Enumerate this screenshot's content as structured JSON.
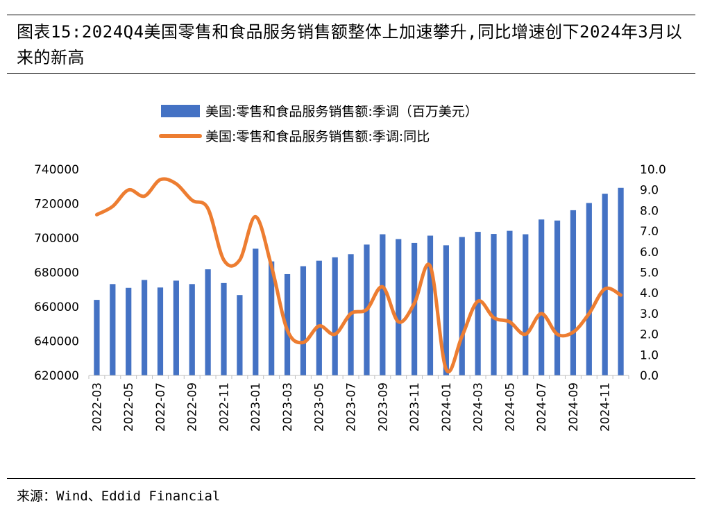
{
  "title": "图表15:2024Q4美国零售和食品服务销售额整体上加速攀升,同比增速创下2024年3月以来的新高",
  "source": "来源：Wind、Eddid Financial",
  "colors": {
    "bar": "#4472C4",
    "line": "#ED7D31",
    "axis": "#bfbfbf",
    "text": "#000000"
  },
  "chart_data": {
    "type": "bar",
    "title": "",
    "categories": [
      "2022-03",
      "2022-04",
      "2022-05",
      "2022-06",
      "2022-07",
      "2022-08",
      "2022-09",
      "2022-10",
      "2022-11",
      "2022-12",
      "2023-01",
      "2023-02",
      "2023-03",
      "2023-04",
      "2023-05",
      "2023-06",
      "2023-07",
      "2023-08",
      "2023-09",
      "2023-10",
      "2023-11",
      "2023-12",
      "2024-01",
      "2024-02",
      "2024-03",
      "2024-04",
      "2024-05",
      "2024-06",
      "2024-07",
      "2024-08",
      "2024-09",
      "2024-10",
      "2024-11",
      "2024-12"
    ],
    "x_tick_labels": [
      "2022-03",
      "2022-05",
      "2022-07",
      "2022-09",
      "2022-11",
      "2023-01",
      "2023-03",
      "2023-05",
      "2023-07",
      "2023-09",
      "2023-11",
      "2024-01",
      "2024-03",
      "2024-05",
      "2024-07",
      "2024-09",
      "2024-11"
    ],
    "series": [
      {
        "name": "美国:零售和食品服务销售额:季调（百万美元）",
        "type": "bar",
        "axis": "left",
        "values": [
          664000,
          673200,
          671000,
          675600,
          671200,
          675200,
          673200,
          681800,
          673800,
          666800,
          693800,
          686400,
          679000,
          683600,
          686800,
          688800,
          690600,
          696200,
          702200,
          699400,
          697200,
          701400,
          695800,
          700600,
          703600,
          702400,
          704200,
          702200,
          710800,
          710200,
          716200,
          720400,
          725800,
          729200
        ]
      },
      {
        "name": "美国:零售和食品服务销售额:季调:同比",
        "type": "line",
        "axis": "right",
        "values": [
          7.8,
          8.2,
          9.0,
          8.7,
          9.5,
          9.3,
          8.5,
          8.1,
          5.6,
          5.6,
          7.7,
          5.3,
          2.2,
          1.6,
          2.4,
          2.0,
          3.0,
          3.2,
          4.3,
          2.6,
          3.5,
          5.3,
          0.3,
          1.9,
          3.6,
          2.8,
          2.6,
          2.0,
          3.0,
          2.0,
          2.1,
          3.0,
          4.2,
          3.9
        ]
      }
    ],
    "y_left": {
      "min": 620000,
      "max": 740000,
      "step": 20000,
      "tick_labels": [
        "620000",
        "640000",
        "660000",
        "680000",
        "700000",
        "720000",
        "740000"
      ]
    },
    "y_right": {
      "min": 0,
      "max": 10,
      "step": 1,
      "tick_labels": [
        "0.0",
        "1.0",
        "2.0",
        "3.0",
        "4.0",
        "5.0",
        "6.0",
        "7.0",
        "8.0",
        "9.0",
        "10.0"
      ]
    },
    "xlabel": "",
    "ylabel": "",
    "grid": false,
    "legend_position": "top-center"
  }
}
